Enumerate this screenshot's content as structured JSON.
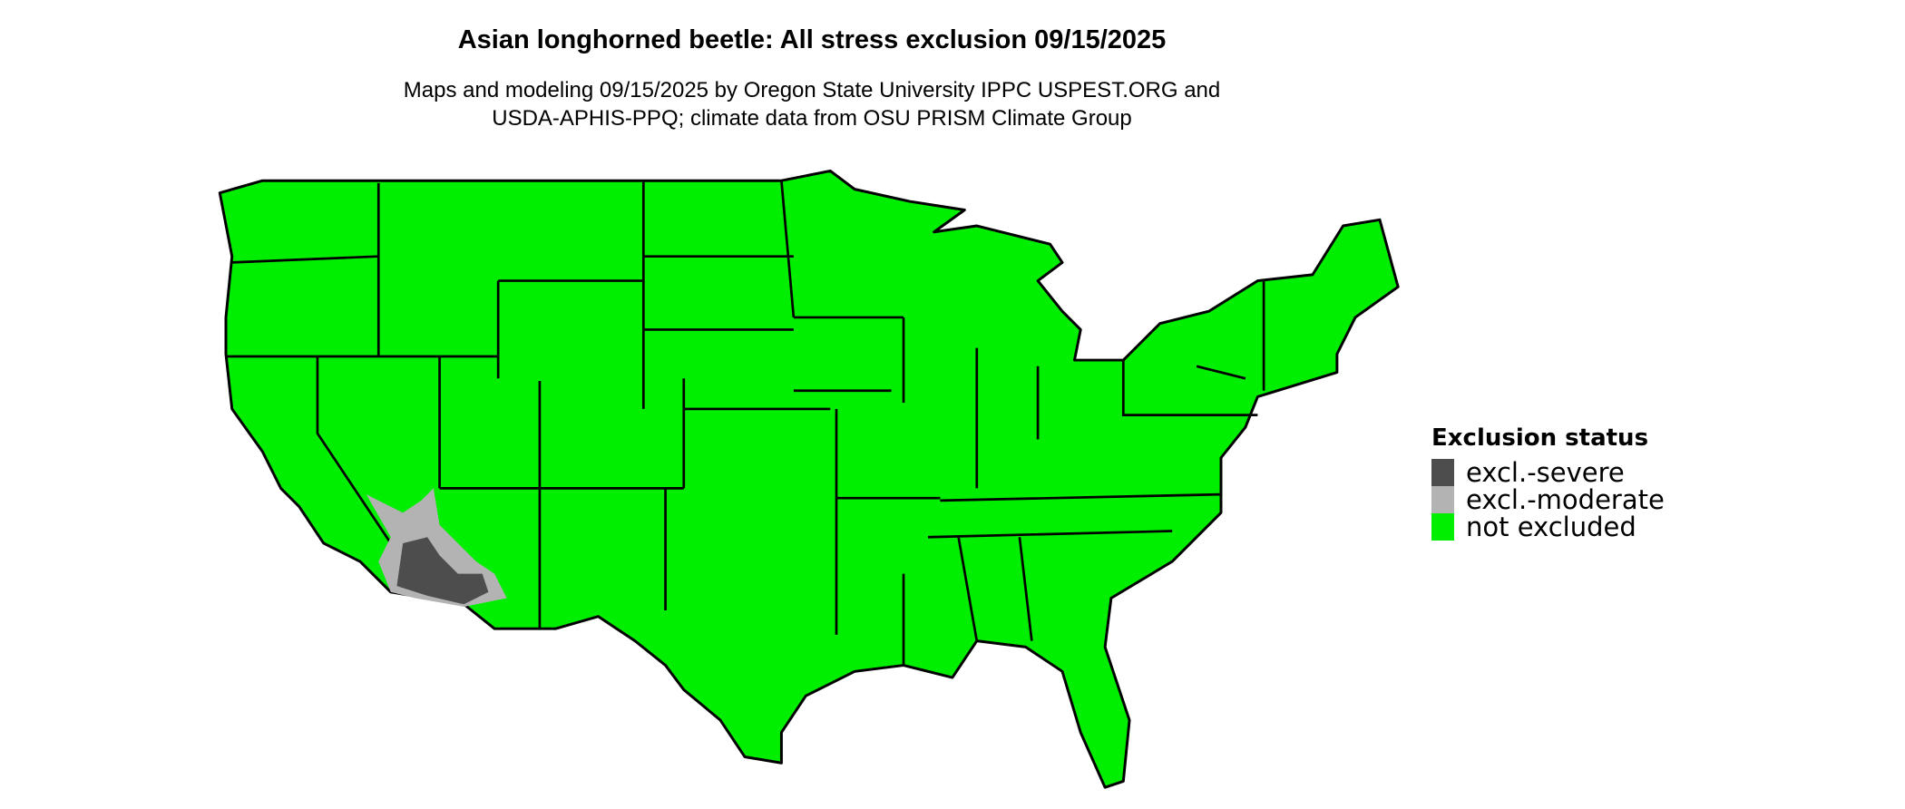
{
  "title": "Asian longhorned beetle: All stress exclusion 09/15/2025",
  "subtitle_lines": [
    "Maps and modeling 09/15/2025 by Oregon State University IPPC USPEST.ORG and",
    "USDA-APHIS-PPQ; climate data from OSU PRISM Climate Group"
  ],
  "legend": {
    "title": "Exclusion status",
    "items": [
      {
        "label": "excl.-severe",
        "color": "#4d4d4d"
      },
      {
        "label": "excl.-moderate",
        "color": "#b3b3b3"
      },
      {
        "label": "not excluded",
        "color": "#00ee00"
      }
    ]
  },
  "map": {
    "region": "Contiguous United States",
    "base_color": "#00ee00",
    "border_color": "#000000"
  }
}
